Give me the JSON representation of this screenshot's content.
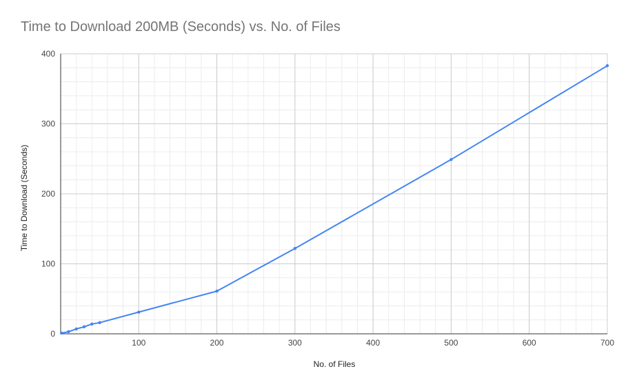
{
  "chart_data": {
    "type": "line",
    "title": "Time to Download 200MB (Seconds) vs. No. of Files",
    "xlabel": "No. of Files",
    "ylabel": "Time to Download (Seconds)",
    "xlim": [
      0,
      700
    ],
    "ylim": [
      0,
      400
    ],
    "x_ticks": [
      100,
      200,
      300,
      400,
      500,
      600,
      700
    ],
    "y_ticks": [
      0,
      100,
      200,
      300,
      400
    ],
    "grid": true,
    "series": [
      {
        "color": "#4285f4",
        "x": [
          1,
          10,
          20,
          30,
          40,
          50,
          100,
          200,
          300,
          500,
          700
        ],
        "y": [
          1,
          3,
          7,
          10,
          14,
          16,
          31,
          61,
          122,
          249,
          383
        ]
      }
    ]
  }
}
